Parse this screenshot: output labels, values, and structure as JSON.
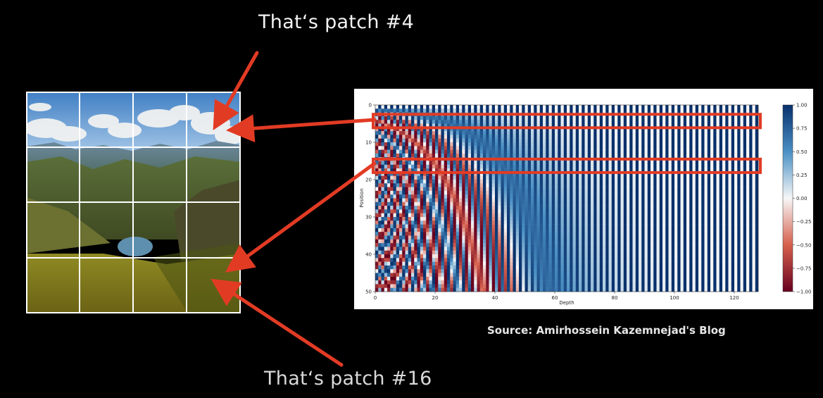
{
  "captions": {
    "top": "That‘s patch #4",
    "bottom": "That‘s patch #16"
  },
  "source": "Source: Amirhossein Kazemnejad's Blog",
  "colors": {
    "background": "#000000",
    "arrow": "#e23b24",
    "highlight_box": "#e23b24",
    "colormap_pos": "#08306b",
    "colormap_neg": "#67001f"
  },
  "photo": {
    "description_icon": "mountain-landscape-image",
    "grid": {
      "rows": 4,
      "cols": 4
    }
  },
  "chart_data": {
    "type": "heatmap",
    "title": "",
    "xlabel": "Depth",
    "ylabel": "Position",
    "xlim": [
      0,
      128
    ],
    "ylim": [
      0,
      50
    ],
    "x_ticks": [
      0,
      20,
      40,
      60,
      80,
      100,
      120
    ],
    "y_ticks": [
      0,
      10,
      20,
      30,
      40,
      50
    ],
    "colormap": "RdBu",
    "colorbar_ticks": [
      "1.00",
      "0.75",
      "0.50",
      "0.25",
      "0.00",
      "−0.25",
      "−0.50",
      "−0.75",
      "−1.00"
    ],
    "highlighted_positions": [
      4,
      16
    ],
    "rows": 50,
    "cols": 128
  }
}
